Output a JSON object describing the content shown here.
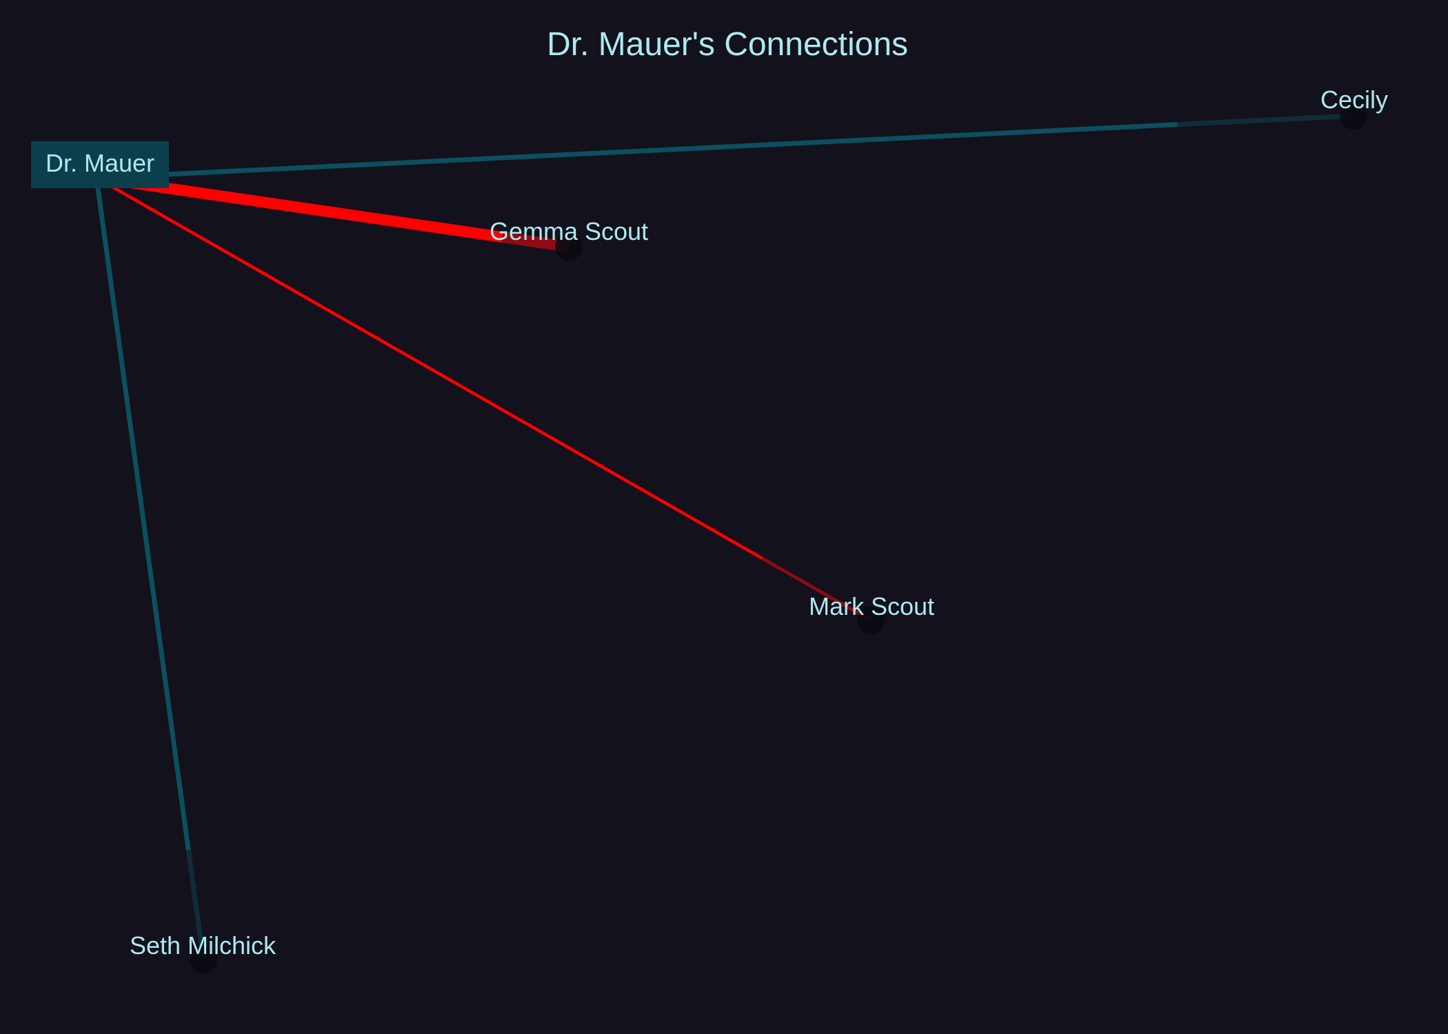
{
  "diagram": {
    "title": "Dr. Mauer's Connections",
    "colors": {
      "background": "#12111c",
      "text": "#aee9ef",
      "neutral_edge": "#0c4f5e",
      "hostile_edge": "#ff0000",
      "center_box": "#0c3f4c",
      "node_dot": "#0a0a12"
    },
    "center": {
      "id": "mauer",
      "label": "Dr. Mauer"
    },
    "nodes": [
      {
        "id": "cecily",
        "label": "Cecily"
      },
      {
        "id": "gemma",
        "label": "Gemma Scout"
      },
      {
        "id": "mark",
        "label": "Mark Scout"
      },
      {
        "id": "seth",
        "label": "Seth Milchick"
      }
    ],
    "edges": [
      {
        "from": "mauer",
        "to": "cecily",
        "kind": "neutral",
        "strength": "medium"
      },
      {
        "from": "mauer",
        "to": "gemma",
        "kind": "hostile",
        "strength": "strong"
      },
      {
        "from": "mauer",
        "to": "mark",
        "kind": "hostile",
        "strength": "weak"
      },
      {
        "from": "mauer",
        "to": "seth",
        "kind": "neutral",
        "strength": "medium"
      }
    ]
  }
}
